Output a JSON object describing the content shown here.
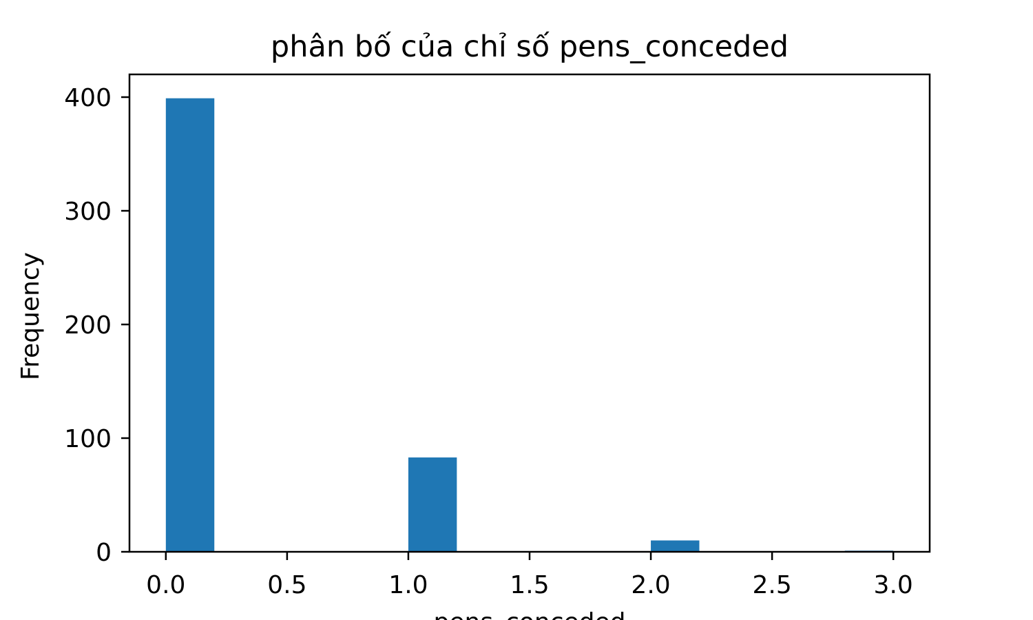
{
  "chart_data": {
    "type": "bar",
    "title": "phân bố của chỉ số pens_conceded",
    "xlabel": "pens_conceded",
    "ylabel": "Frequency",
    "xlim": [
      -0.15,
      3.15
    ],
    "ylim": [
      0,
      420
    ],
    "x_ticks": [
      "0.0",
      "0.5",
      "1.0",
      "1.5",
      "2.0",
      "2.5",
      "3.0"
    ],
    "x_tick_values": [
      0.0,
      0.5,
      1.0,
      1.5,
      2.0,
      2.5,
      3.0
    ],
    "y_ticks": [
      "0",
      "100",
      "200",
      "300",
      "400"
    ],
    "y_tick_values": [
      0,
      100,
      200,
      300,
      400
    ],
    "grid": false,
    "bar_color": "#1f77b4",
    "bins": [
      {
        "start": 0.0,
        "end": 0.2,
        "value": 399
      },
      {
        "start": 1.0,
        "end": 1.2,
        "value": 83
      },
      {
        "start": 2.0,
        "end": 2.2,
        "value": 10
      },
      {
        "start": 2.8,
        "end": 3.0,
        "value": 1
      }
    ]
  }
}
